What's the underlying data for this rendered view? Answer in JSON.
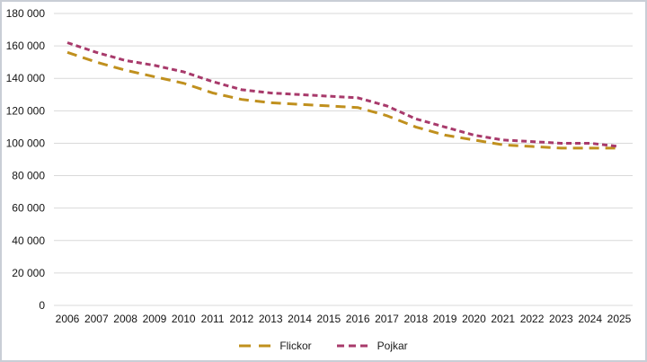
{
  "chart_data": {
    "type": "line",
    "title": "",
    "xlabel": "",
    "ylabel": "",
    "x": [
      2006,
      2007,
      2008,
      2009,
      2010,
      2011,
      2012,
      2013,
      2014,
      2015,
      2016,
      2017,
      2018,
      2019,
      2020,
      2021,
      2022,
      2023,
      2024,
      2025
    ],
    "series": [
      {
        "name": "Flickor",
        "color": "#c0901e",
        "dash": "11 7",
        "legend_dash": "13 9",
        "values": [
          156000,
          150000,
          145000,
          141000,
          137000,
          131000,
          127000,
          125000,
          124000,
          123000,
          122000,
          117000,
          110000,
          105000,
          102000,
          99000,
          98000,
          97000,
          97000,
          97000
        ]
      },
      {
        "name": "Pojkar",
        "color": "#a83a6b",
        "dash": "6 4",
        "legend_dash": "8 5",
        "values": [
          162000,
          156000,
          151000,
          148000,
          144000,
          138000,
          133000,
          131000,
          130000,
          129000,
          128000,
          123000,
          115000,
          110000,
          105000,
          102000,
          101000,
          100000,
          100000,
          98000
        ]
      }
    ],
    "ylim": [
      0,
      180000
    ],
    "y_tick_step": 20000,
    "y_tick_labels": [
      "0",
      "20 000",
      "40 000",
      "60 000",
      "80 000",
      "100 000",
      "120 000",
      "140 000",
      "160 000",
      "180 000"
    ],
    "grid": "horizontal-only",
    "gridline_color": "#d9d9d9",
    "axis_text_color": "#141414",
    "legend_position": "bottom"
  }
}
